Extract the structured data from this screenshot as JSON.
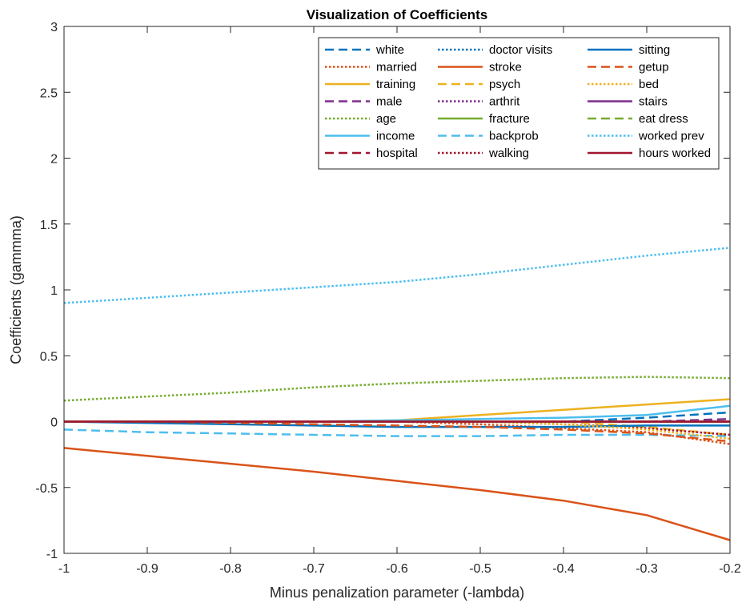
{
  "chart_data": {
    "type": "line",
    "title": "Visualization of Coefficients",
    "xlabel": "Minus penalization parameter (-lambda)",
    "ylabel": "Coefficients (gammma)",
    "xlim": [
      -1,
      -0.2
    ],
    "ylim": [
      -1,
      3
    ],
    "xticks": [
      -1,
      -0.9,
      -0.8,
      -0.7,
      -0.6,
      -0.5,
      -0.4,
      -0.3,
      -0.2
    ],
    "xtick_labels": [
      "-1",
      "-0.9",
      "-0.8",
      "-0.7",
      "-0.6",
      "-0.5",
      "-0.4",
      "-0.3",
      "-0.2"
    ],
    "yticks": [
      -1,
      -0.5,
      0,
      0.5,
      1,
      1.5,
      2,
      2.5,
      3
    ],
    "ytick_labels": [
      "-1",
      "-0.5",
      "0",
      "0.5",
      "1",
      "1.5",
      "2",
      "2.5",
      "3"
    ],
    "grid": false,
    "legend_position": "top-right",
    "legend_columns": 3,
    "x": [
      -1,
      -0.9,
      -0.8,
      -0.7,
      -0.6,
      -0.5,
      -0.4,
      -0.3,
      -0.2
    ],
    "series": [
      {
        "name": "white",
        "color": "#0072BD",
        "style": "dashed",
        "values": [
          0,
          0,
          0,
          0,
          0,
          0,
          0,
          0.03,
          0.07
        ]
      },
      {
        "name": "married",
        "color": "#D95319",
        "style": "dotted",
        "values": [
          0,
          0,
          0,
          0,
          0,
          -0.02,
          -0.05,
          -0.08,
          -0.17
        ]
      },
      {
        "name": "training",
        "color": "#EDB120",
        "style": "solid",
        "values": [
          0,
          0,
          0,
          0,
          0.01,
          0.05,
          0.09,
          0.13,
          0.17
        ]
      },
      {
        "name": "male",
        "color": "#7E2F8E",
        "style": "dashed",
        "values": [
          0,
          0,
          0,
          0,
          0,
          0,
          0,
          0,
          0.02
        ]
      },
      {
        "name": "age",
        "color": "#77AC30",
        "style": "dotted",
        "values": [
          0.16,
          0.19,
          0.22,
          0.26,
          0.29,
          0.31,
          0.33,
          0.34,
          0.33
        ]
      },
      {
        "name": "income",
        "color": "#4DBEEE",
        "style": "solid",
        "values": [
          0,
          0,
          0,
          0,
          0.01,
          0.02,
          0.03,
          0.05,
          0.12
        ]
      },
      {
        "name": "hospital",
        "color": "#A2142F",
        "style": "dashed",
        "values": [
          0,
          0,
          0,
          0,
          0,
          0,
          0,
          0,
          0
        ]
      },
      {
        "name": "doctor visits",
        "color": "#0072BD",
        "style": "dotted",
        "values": [
          0,
          0,
          0,
          0,
          0,
          0,
          0,
          0,
          0
        ]
      },
      {
        "name": "stroke",
        "color": "#D95319",
        "style": "solid",
        "values": [
          -0.2,
          -0.26,
          -0.32,
          -0.38,
          -0.45,
          -0.52,
          -0.6,
          -0.71,
          -0.9
        ]
      },
      {
        "name": "psych",
        "color": "#EDB120",
        "style": "dashed",
        "values": [
          0,
          0,
          0,
          0,
          0,
          0,
          0,
          -0.04,
          -0.1
        ]
      },
      {
        "name": "arthrit",
        "color": "#7E2F8E",
        "style": "dotted",
        "values": [
          0,
          0,
          0,
          0,
          0,
          0,
          0,
          0,
          0
        ]
      },
      {
        "name": "fracture",
        "color": "#77AC30",
        "style": "solid",
        "values": [
          0,
          0,
          0,
          0,
          0,
          0,
          0,
          0,
          0
        ]
      },
      {
        "name": "backprob",
        "color": "#4DBEEE",
        "style": "dashed",
        "values": [
          -0.06,
          -0.08,
          -0.09,
          -0.1,
          -0.11,
          -0.11,
          -0.1,
          -0.1,
          -0.11
        ]
      },
      {
        "name": "walking",
        "color": "#A2142F",
        "style": "dotted",
        "values": [
          0,
          0,
          0,
          0,
          0,
          0,
          -0.02,
          -0.05,
          -0.1
        ]
      },
      {
        "name": "sitting",
        "color": "#0072BD",
        "style": "solid",
        "values": [
          0,
          -0.01,
          -0.02,
          -0.03,
          -0.04,
          -0.04,
          -0.04,
          -0.03,
          -0.03
        ]
      },
      {
        "name": "getup",
        "color": "#D95319",
        "style": "dashed",
        "values": [
          0,
          0,
          -0.01,
          -0.02,
          -0.03,
          -0.04,
          -0.06,
          -0.09,
          -0.15
        ]
      },
      {
        "name": "bed",
        "color": "#EDB120",
        "style": "dotted",
        "values": [
          0,
          0,
          0,
          0,
          0,
          0,
          -0.02,
          -0.06,
          -0.13
        ]
      },
      {
        "name": "stairs",
        "color": "#7E2F8E",
        "style": "solid",
        "values": [
          0,
          0,
          0,
          0,
          0,
          0,
          0,
          0,
          0
        ]
      },
      {
        "name": "eat dress",
        "color": "#77AC30",
        "style": "dashed",
        "values": [
          0,
          0,
          0,
          0,
          0,
          0,
          0,
          0,
          0
        ]
      },
      {
        "name": "worked prev",
        "color": "#4DBEEE",
        "style": "dotted",
        "values": [
          0.9,
          0.94,
          0.98,
          1.02,
          1.06,
          1.12,
          1.19,
          1.26,
          1.32
        ]
      },
      {
        "name": "hours worked",
        "color": "#A2142F",
        "style": "solid",
        "values": [
          0,
          0,
          0,
          0,
          0,
          0,
          0,
          0,
          0
        ]
      }
    ]
  }
}
